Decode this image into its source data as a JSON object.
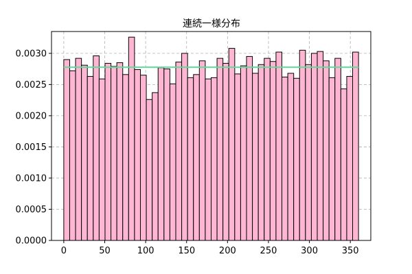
{
  "chart_data": {
    "type": "bar",
    "title": "連続一様分布",
    "xlabel": "",
    "ylabel": "",
    "xlim": [
      -15,
      375
    ],
    "ylim": [
      0,
      0.00335
    ],
    "x_ticks": [
      0,
      50,
      100,
      150,
      200,
      250,
      300,
      350
    ],
    "y_ticks": [
      0.0,
      0.0005,
      0.001,
      0.0015,
      0.002,
      0.0025,
      0.003
    ],
    "x_tick_labels": [
      "0",
      "50",
      "100",
      "150",
      "200",
      "250",
      "300",
      "350"
    ],
    "y_tick_labels": [
      "0.0000",
      "0.0005",
      "0.0010",
      "0.0015",
      "0.0020",
      "0.0025",
      "0.0030"
    ],
    "grid": true,
    "bin_start": 0,
    "bin_width": 7.2,
    "values": [
      0.0029,
      0.00272,
      0.00292,
      0.00281,
      0.00263,
      0.00296,
      0.00259,
      0.00284,
      0.00279,
      0.00285,
      0.00266,
      0.00326,
      0.00274,
      0.00265,
      0.00226,
      0.00237,
      0.00277,
      0.00275,
      0.00251,
      0.00286,
      0.003,
      0.00261,
      0.00266,
      0.00288,
      0.00259,
      0.00261,
      0.00292,
      0.00284,
      0.00308,
      0.00267,
      0.0028,
      0.00295,
      0.00268,
      0.00282,
      0.00292,
      0.00287,
      0.00302,
      0.00262,
      0.00268,
      0.0026,
      0.00305,
      0.00282,
      0.003,
      0.00303,
      0.00288,
      0.00261,
      0.00292,
      0.00243,
      0.00263,
      0.00302
    ],
    "reference_line": {
      "y": 0.002778,
      "x_from": 0,
      "x_to": 360
    },
    "colors": {
      "bar_fill": "#ffb6d2",
      "bar_edge": "#000000",
      "reference_line": "#5fdc9a",
      "grid": "#b0b0b0"
    }
  }
}
